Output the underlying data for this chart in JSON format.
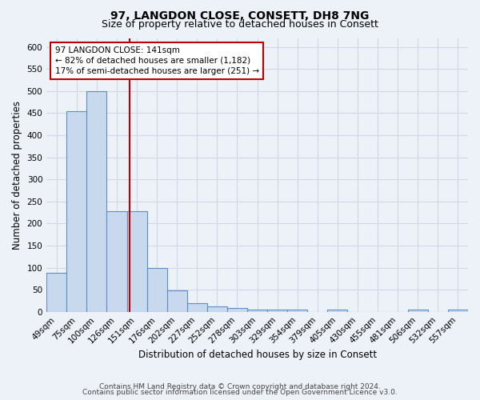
{
  "title": "97, LANGDON CLOSE, CONSETT, DH8 7NG",
  "subtitle": "Size of property relative to detached houses in Consett",
  "xlabel": "Distribution of detached houses by size in Consett",
  "ylabel": "Number of detached properties",
  "categories": [
    "49sqm",
    "75sqm",
    "100sqm",
    "126sqm",
    "151sqm",
    "176sqm",
    "202sqm",
    "227sqm",
    "252sqm",
    "278sqm",
    "303sqm",
    "329sqm",
    "354sqm",
    "379sqm",
    "405sqm",
    "430sqm",
    "455sqm",
    "481sqm",
    "506sqm",
    "532sqm",
    "557sqm"
  ],
  "values": [
    88,
    455,
    500,
    228,
    228,
    100,
    48,
    20,
    13,
    8,
    5,
    5,
    5,
    0,
    5,
    0,
    0,
    0,
    5,
    0,
    5
  ],
  "bar_color": "#c9d9ed",
  "bar_edge_color": "#5b8ec4",
  "annotation_line1": "97 LANGDON CLOSE: 141sqm",
  "annotation_line2": "← 82% of detached houses are smaller (1,182)",
  "annotation_line3": "17% of semi-detached houses are larger (251) →",
  "annotation_box_color": "#ffffff",
  "annotation_box_edge_color": "#c00000",
  "red_line_color": "#c00000",
  "ylim": [
    0,
    620
  ],
  "yticks": [
    0,
    50,
    100,
    150,
    200,
    250,
    300,
    350,
    400,
    450,
    500,
    550,
    600
  ],
  "footer1": "Contains HM Land Registry data © Crown copyright and database right 2024.",
  "footer2": "Contains public sector information licensed under the Open Government Licence v3.0.",
  "bg_color": "#edf2f9",
  "plot_bg_color": "#edf2f9",
  "grid_color": "#d0d8e8",
  "title_fontsize": 10,
  "subtitle_fontsize": 9,
  "axis_label_fontsize": 8.5,
  "tick_fontsize": 7.5,
  "annotation_fontsize": 7.5,
  "footer_fontsize": 6.5
}
